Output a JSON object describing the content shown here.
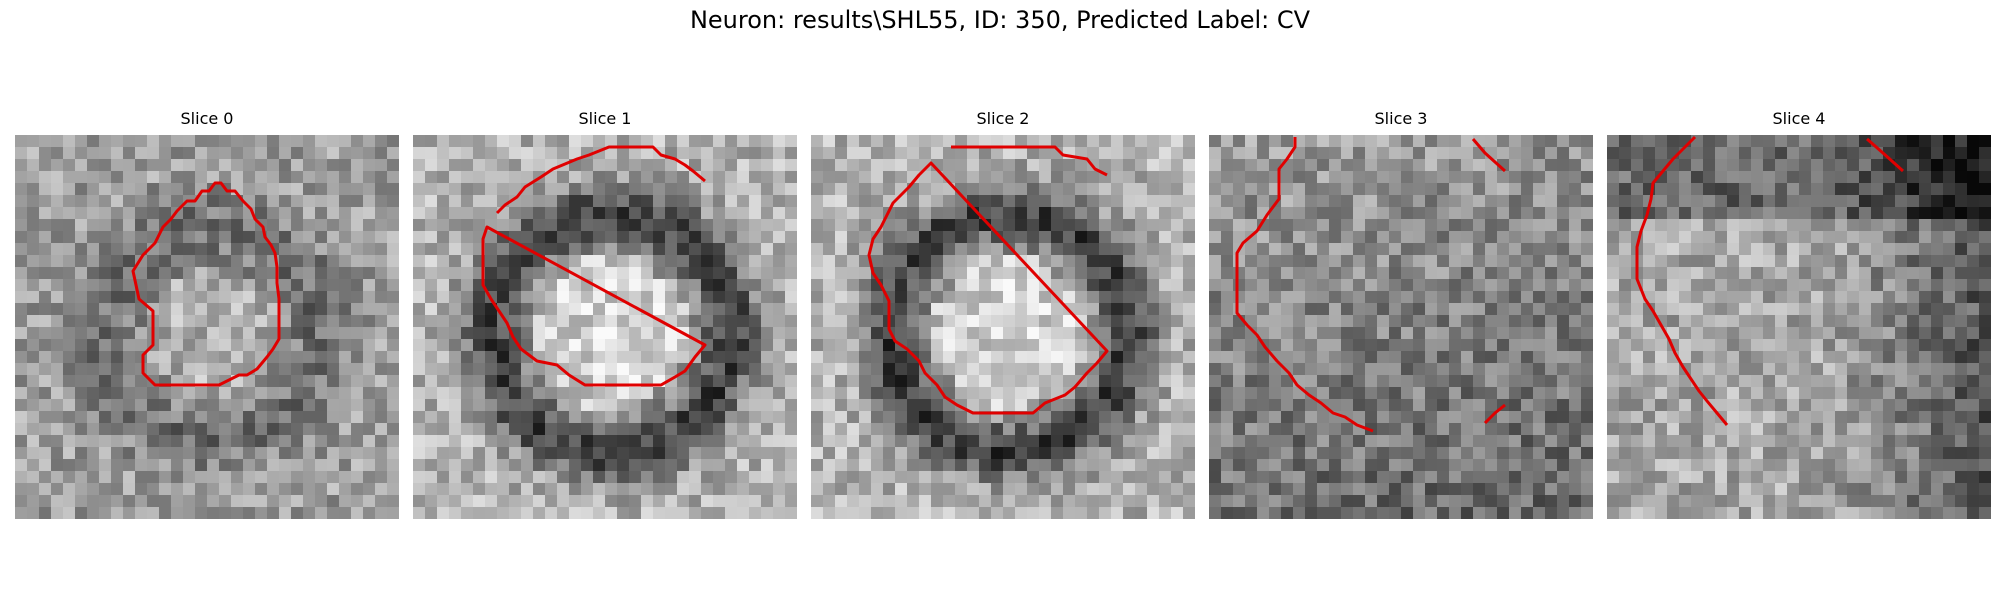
{
  "figure": {
    "title": "Neuron: results\\SHL55, ID: 350, Predicted Label: CV",
    "contour_color": "#e00000"
  },
  "panels": [
    {
      "label": "Slice 0",
      "seed": 11,
      "darkness_pattern": "ring-soft"
    },
    {
      "label": "Slice 1",
      "seed": 23,
      "darkness_pattern": "ring-strong"
    },
    {
      "label": "Slice 2",
      "seed": 37,
      "darkness_pattern": "ring-strong"
    },
    {
      "label": "Slice 3",
      "seed": 53,
      "darkness_pattern": "gradient"
    },
    {
      "label": "Slice 4",
      "seed": 71,
      "darkness_pattern": "dark-right"
    }
  ]
}
